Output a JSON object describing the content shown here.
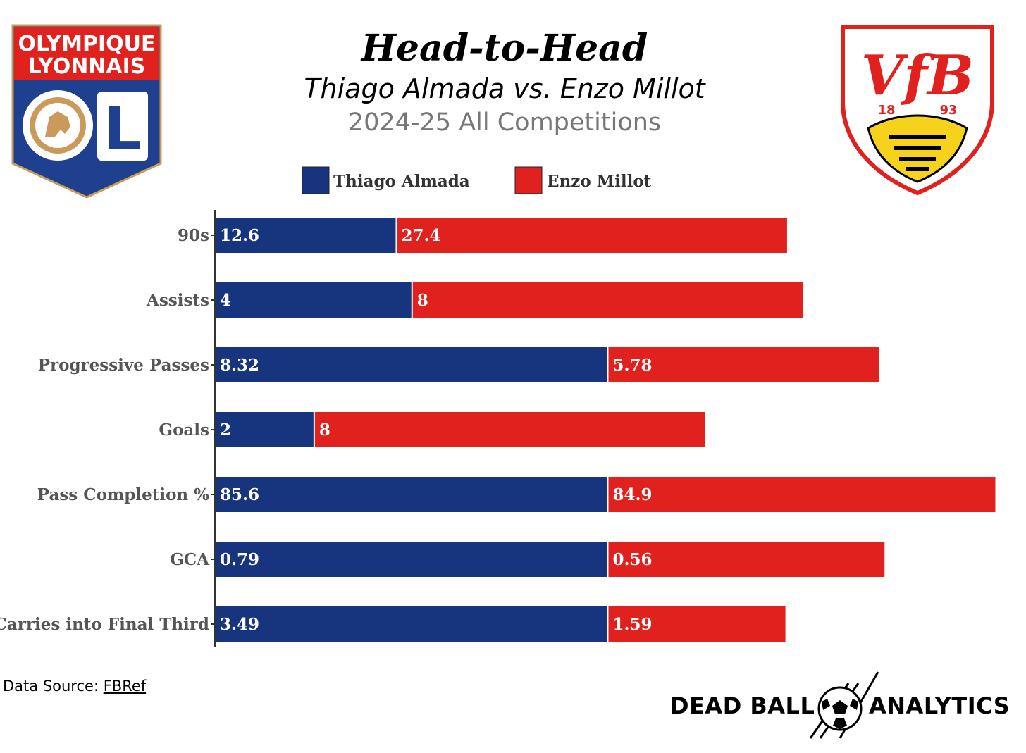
{
  "header": {
    "title": "Head-to-Head",
    "subtitle": "Thiago Almada vs. Enzo Millot",
    "season": "2024-25 All Competitions"
  },
  "logos": {
    "left": {
      "line1": "OLYMPIQUE",
      "line2": "LYONNAIS",
      "letter": "L"
    },
    "right": {
      "letters": "VfB",
      "year_left": "18",
      "year_right": "93"
    }
  },
  "footer": {
    "source_label": "Data Source: ",
    "source_link": "FBRef",
    "brand_left": "DEAD BALL",
    "brand_right": "ANALYTICS"
  },
  "colors": {
    "almada": "#17357e",
    "millot": "#e0211d",
    "label": "#555555"
  },
  "chart_data": {
    "type": "bar",
    "orientation": "horizontal",
    "stacked": true,
    "note": "each stat normalized so the larger player value equals 1; segment lengths shown relative",
    "categories": [
      "90s",
      "Assists",
      "Progressive Passes",
      "Goals",
      "Pass Completion %",
      "GCA",
      "Carries into Final Third"
    ],
    "series": [
      {
        "name": "Thiago Almada",
        "values": [
          12.6,
          4,
          8.32,
          2,
          85.6,
          0.79,
          3.49
        ],
        "labels": [
          "12.6",
          "4",
          "8.32",
          "2",
          "85.6",
          "0.79",
          "3.49"
        ]
      },
      {
        "name": "Enzo Millot",
        "values": [
          27.4,
          8,
          5.78,
          8,
          84.9,
          0.56,
          1.59
        ],
        "labels": [
          "27.4",
          "8",
          "5.78",
          "8",
          "84.9",
          "0.56",
          "1.59"
        ]
      }
    ],
    "legend": [
      "Thiago Almada",
      "Enzo Millot"
    ],
    "legend_position": "top-center"
  }
}
